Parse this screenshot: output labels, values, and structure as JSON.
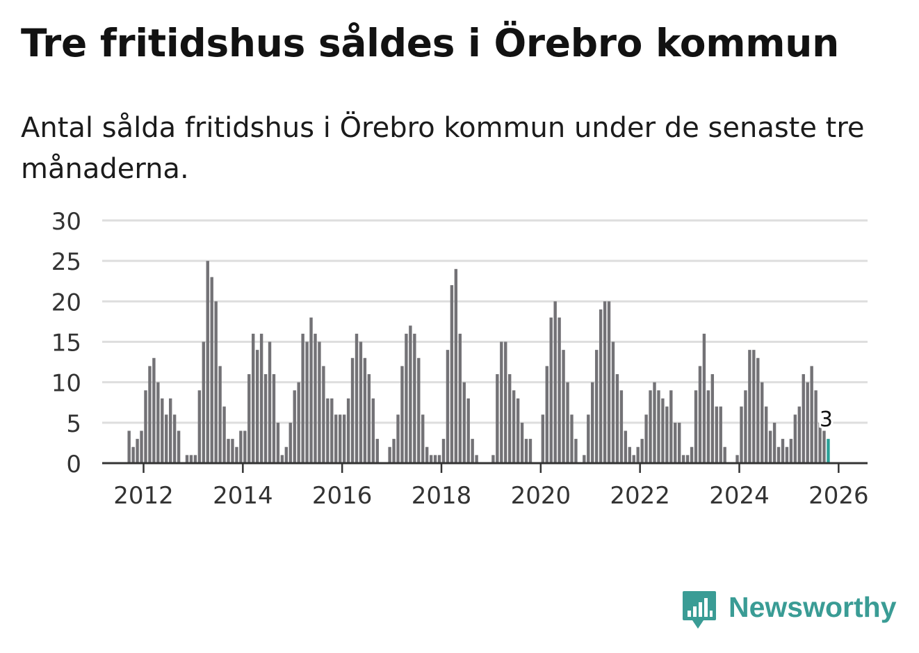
{
  "title": "Tre fritidshus såldes i Örebro kommun",
  "subtitle": "Antal sålda fritidshus i Örebro kommun under de senaste tre månaderna.",
  "brand": {
    "name": "Newsworthy",
    "logo_icon": "newsworthy-bar-chart-logo-icon",
    "color": "#3a9c95"
  },
  "chart_data": {
    "type": "bar",
    "title": "Tre fritidshus såldes i Örebro kommun",
    "subtitle": "Antal sålda fritidshus i Örebro kommun under de senaste tre månaderna.",
    "x_start": "2011-09",
    "x_end": "2025-12",
    "xlim": [
      "2011-03",
      "2026-08"
    ],
    "x_ticks": [
      "2012",
      "2014",
      "2016",
      "2018",
      "2020",
      "2022",
      "2024",
      "2026"
    ],
    "ylim": [
      0,
      30
    ],
    "y_ticks": [
      0,
      5,
      10,
      15,
      20,
      25,
      30
    ],
    "grid": true,
    "bar_color": "#737276",
    "highlight_color": "#2aa198",
    "highlight_last": true,
    "last_value_label": "3",
    "values": [
      4,
      2,
      3,
      4,
      9,
      12,
      13,
      10,
      8,
      6,
      8,
      6,
      4,
      0,
      1,
      1,
      1,
      9,
      15,
      25,
      23,
      20,
      12,
      7,
      3,
      3,
      2,
      4,
      4,
      11,
      16,
      14,
      16,
      11,
      15,
      11,
      5,
      1,
      2,
      5,
      9,
      10,
      16,
      15,
      18,
      16,
      15,
      12,
      8,
      8,
      6,
      6,
      6,
      8,
      13,
      16,
      15,
      13,
      11,
      8,
      3,
      0,
      0,
      2,
      3,
      6,
      12,
      16,
      17,
      16,
      13,
      6,
      2,
      1,
      1,
      1,
      3,
      14,
      22,
      24,
      16,
      10,
      8,
      3,
      1,
      0,
      0,
      0,
      1,
      11,
      15,
      15,
      11,
      9,
      8,
      5,
      3,
      3,
      0,
      0,
      6,
      12,
      18,
      20,
      18,
      14,
      10,
      6,
      3,
      0,
      1,
      6,
      10,
      14,
      19,
      20,
      20,
      15,
      11,
      9,
      4,
      2,
      1,
      2,
      3,
      6,
      9,
      10,
      9,
      8,
      7,
      9,
      5,
      5,
      1,
      1,
      2,
      9,
      12,
      16,
      9,
      11,
      7,
      7,
      2,
      0,
      0,
      1,
      7,
      9,
      14,
      14,
      13,
      10,
      7,
      4,
      5,
      2,
      3,
      2,
      3,
      6,
      7,
      11,
      10,
      12,
      9,
      5,
      4,
      3
    ]
  }
}
